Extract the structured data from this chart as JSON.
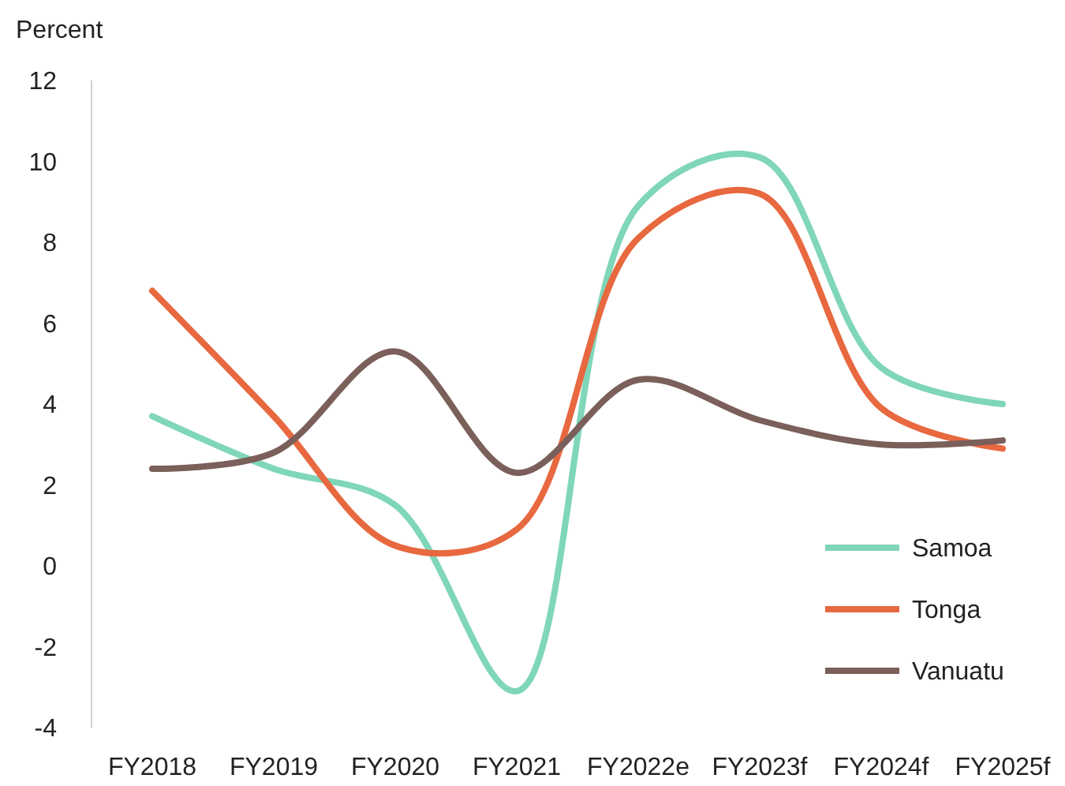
{
  "chart_data": {
    "type": "line",
    "ylabel": "Percent",
    "categories": [
      "FY2018",
      "FY2019",
      "FY2020",
      "FY2021",
      "FY2022e",
      "FY2023f",
      "FY2024f",
      "FY2025f"
    ],
    "series": [
      {
        "name": "Samoa",
        "color": "#7fd6b9",
        "values": [
          3.7,
          2.4,
          1.5,
          -3.1,
          8.9,
          10.1,
          4.9,
          4.0
        ]
      },
      {
        "name": "Tonga",
        "color": "#e8683f",
        "values": [
          6.8,
          3.7,
          0.5,
          0.9,
          8.1,
          9.2,
          3.9,
          2.9
        ]
      },
      {
        "name": "Vanuatu",
        "color": "#7b5f5a",
        "values": [
          2.4,
          2.8,
          5.3,
          2.3,
          4.6,
          3.6,
          3.0,
          3.1
        ]
      }
    ],
    "ylim": [
      -4,
      12
    ],
    "yticks": [
      -4,
      -2,
      0,
      2,
      4,
      6,
      8,
      10,
      12
    ],
    "grid": false,
    "legend": "bottom right",
    "marker": "none",
    "line_style": "solid"
  }
}
